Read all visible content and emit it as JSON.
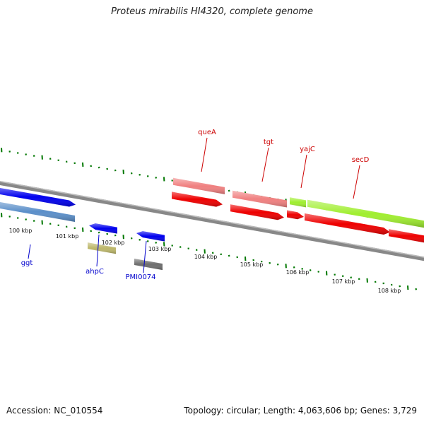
{
  "title": "Proteus mirabilis HI4320, complete genome",
  "accession_label": "Accession: NC_010554",
  "summary_label": "Topology: circular; Length: 4,063,606 bp; Genes: 3,729",
  "scale": {
    "tick_labels": [
      "100 kbp",
      "101 kbp",
      "102 kbp",
      "103 kbp",
      "104 kbp",
      "105 kbp",
      "106 kbp",
      "107 kbp",
      "108 kbp"
    ]
  },
  "features": {
    "forward": [
      {
        "name": "ggt",
        "color": "#0000ee"
      },
      {
        "name": "ahpC",
        "color": "#0000ee"
      },
      {
        "name": "PMI0074",
        "color": "#0000ee"
      },
      {
        "name": "queA",
        "color": "#ee0000"
      },
      {
        "name": "tgt",
        "color": "#ee0000"
      },
      {
        "name": "yajC",
        "color": "#ee0000"
      },
      {
        "name": "secD",
        "color": "#ee0000"
      }
    ]
  },
  "colors": {
    "forward_strand": "#0000ee",
    "reverse_strand": "#ee0000",
    "tick": "#007700",
    "backbone": "#888888",
    "label_blue": "#0000cc",
    "label_red": "#cc0000",
    "cog_blue": "#5b8fc9",
    "cog_khaki": "#bdb76b",
    "cog_gray": "#6e6e6e",
    "cog_salmon": "#f08080",
    "cog_lime": "#a0ee30"
  }
}
